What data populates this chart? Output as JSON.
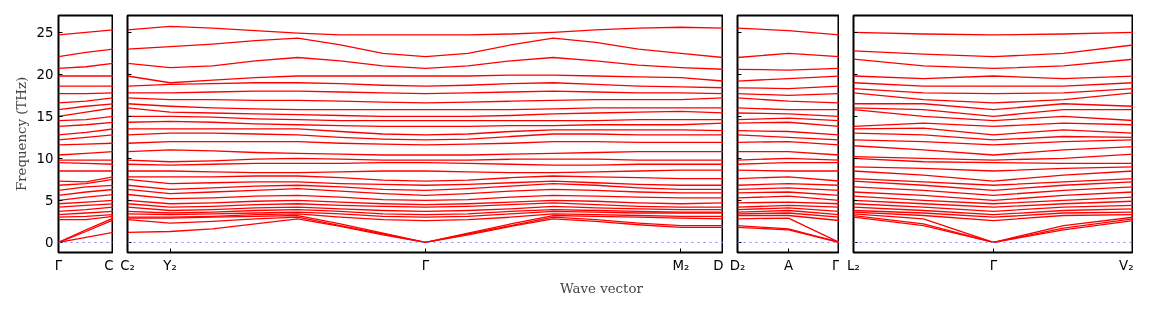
{
  "chart_data": [
    {
      "type": "line",
      "ylabel": "Frequency (THz)",
      "categories": [
        "Γ",
        null,
        "C"
      ],
      "ylim": [
        -1.2,
        27
      ],
      "yticks": [
        0,
        5,
        10,
        15,
        20,
        25
      ],
      "ref_lines": [
        {
          "axis": "y",
          "value": 0,
          "label": null,
          "color": "#8080ff",
          "line_style": "dotted"
        }
      ],
      "grid": false,
      "marker": "none",
      "line_style": "solid",
      "series": [
        {
          "color": "#ff0000",
          "values": [
            0,
            0.6,
            1.2
          ]
        },
        {
          "color": "#ff0000",
          "values": [
            0,
            1.3,
            2.7
          ]
        },
        {
          "color": "#ff0000",
          "values": [
            0,
            1.5,
            2.9
          ]
        },
        {
          "color": "#ff0000",
          "values": [
            2.7,
            2.7,
            3.1
          ]
        },
        {
          "color": "#ff0000",
          "values": [
            3.0,
            3.1,
            3.3
          ]
        },
        {
          "color": "#ff0000",
          "values": [
            3.3,
            3.5,
            3.7
          ]
        },
        {
          "color": "#ff0000",
          "values": [
            3.7,
            3.9,
            4.2
          ]
        },
        {
          "color": "#ff0000",
          "values": [
            4.2,
            4.4,
            4.6
          ]
        },
        {
          "color": "#ff0000",
          "values": [
            4.6,
            4.8,
            5.0
          ]
        },
        {
          "color": "#ff0000",
          "values": [
            5.0,
            5.4,
            5.7
          ]
        },
        {
          "color": "#ff0000",
          "values": [
            5.6,
            6.0,
            6.3
          ]
        },
        {
          "color": "#ff0000",
          "values": [
            6.2,
            6.6,
            6.8
          ]
        },
        {
          "color": "#ff0000",
          "values": [
            6.8,
            7.0,
            7.5
          ]
        },
        {
          "color": "#ff0000",
          "values": [
            7.3,
            7.2,
            7.8
          ]
        },
        {
          "color": "#ff0000",
          "values": [
            8.5,
            8.5,
            8.5
          ]
        },
        {
          "color": "#ff0000",
          "values": [
            9.5,
            9.4,
            9.3
          ]
        },
        {
          "color": "#ff0000",
          "values": [
            9.8,
            9.8,
            9.8
          ]
        },
        {
          "color": "#ff0000",
          "values": [
            10.4,
            10.6,
            10.8
          ]
        },
        {
          "color": "#ff0000",
          "values": [
            11.6,
            11.7,
            11.8
          ]
        },
        {
          "color": "#ff0000",
          "values": [
            12.2,
            12.5,
            12.8
          ]
        },
        {
          "color": "#ff0000",
          "values": [
            12.8,
            13.1,
            13.5
          ]
        },
        {
          "color": "#ff0000",
          "values": [
            13.8,
            14.0,
            14.3
          ]
        },
        {
          "color": "#ff0000",
          "values": [
            14.5,
            14.6,
            15.0
          ]
        },
        {
          "color": "#ff0000",
          "values": [
            15.0,
            15.5,
            16.0
          ]
        },
        {
          "color": "#ff0000",
          "values": [
            15.8,
            16.2,
            16.5
          ]
        },
        {
          "color": "#ff0000",
          "values": [
            16.6,
            16.8,
            17.2
          ]
        },
        {
          "color": "#ff0000",
          "values": [
            17.7,
            17.7,
            17.8
          ]
        },
        {
          "color": "#ff0000",
          "values": [
            18.6,
            18.6,
            18.6
          ]
        },
        {
          "color": "#ff0000",
          "values": [
            19.8,
            19.8,
            19.8
          ]
        },
        {
          "color": "#ff0000",
          "values": [
            20.7,
            20.9,
            21.3
          ]
        },
        {
          "color": "#ff0000",
          "values": [
            22.1,
            22.6,
            23.0
          ]
        },
        {
          "color": "#ff0000",
          "values": [
            24.7,
            25.0,
            25.3
          ]
        }
      ]
    },
    {
      "type": "line",
      "xlabel": "Wave vector",
      "categories": [
        "C₂",
        "Y₂",
        null,
        null,
        null,
        null,
        null,
        "Γ",
        null,
        null,
        null,
        null,
        null,
        "M₂",
        "D"
      ],
      "ylim": [
        -1.2,
        27
      ],
      "yticks": [
        0,
        5,
        10,
        15,
        20,
        25
      ],
      "tick_labels": "x",
      "ref_lines": [
        {
          "axis": "y",
          "value": 0,
          "label": null,
          "color": "#8080ff",
          "line_style": "dotted"
        }
      ],
      "grid": false,
      "marker": "none",
      "line_style": "solid",
      "series": [
        {
          "color": "#ff0000",
          "values": [
            1.2,
            1.3,
            1.6,
            2.2,
            2.8,
            1.9,
            0.9,
            0,
            0.9,
            1.9,
            2.8,
            2.5,
            2.1,
            1.8,
            1.8
          ]
        },
        {
          "color": "#ff0000",
          "values": [
            2.7,
            2.3,
            2.5,
            2.8,
            3.0,
            2.0,
            1.0,
            0,
            1.0,
            2.0,
            3.0,
            2.7,
            2.3,
            2.0,
            2.0
          ]
        },
        {
          "color": "#ff0000",
          "values": [
            2.9,
            2.9,
            3.0,
            3.1,
            3.2,
            2.2,
            1.1,
            0,
            1.1,
            2.2,
            3.2,
            3.1,
            3.0,
            2.9,
            2.8
          ]
        },
        {
          "color": "#ff0000",
          "values": [
            3.0,
            3.0,
            3.1,
            3.3,
            3.4,
            3.0,
            2.7,
            2.6,
            2.7,
            3.0,
            3.4,
            3.3,
            3.2,
            3.1,
            3.1
          ]
        },
        {
          "color": "#ff0000",
          "values": [
            3.4,
            3.3,
            3.4,
            3.5,
            3.6,
            3.4,
            3.1,
            3.0,
            3.1,
            3.4,
            3.7,
            3.6,
            3.5,
            3.5,
            3.5
          ]
        },
        {
          "color": "#ff0000",
          "values": [
            3.7,
            3.5,
            3.6,
            3.8,
            3.9,
            3.7,
            3.4,
            3.3,
            3.4,
            3.7,
            3.9,
            3.8,
            3.7,
            3.6,
            3.6
          ]
        },
        {
          "color": "#ff0000",
          "values": [
            4.2,
            3.8,
            3.9,
            4.1,
            4.2,
            4.0,
            3.8,
            3.7,
            3.8,
            4.0,
            4.3,
            4.1,
            4.0,
            3.9,
            3.9
          ]
        },
        {
          "color": "#ff0000",
          "values": [
            4.6,
            4.2,
            4.3,
            4.5,
            4.6,
            4.4,
            4.3,
            4.2,
            4.3,
            4.5,
            4.7,
            4.5,
            4.3,
            4.2,
            4.2
          ]
        },
        {
          "color": "#ff0000",
          "values": [
            5.0,
            4.6,
            4.7,
            4.9,
            5.0,
            4.8,
            4.6,
            4.5,
            4.6,
            4.8,
            5.0,
            4.9,
            4.7,
            4.6,
            4.7
          ]
        },
        {
          "color": "#ff0000",
          "values": [
            5.7,
            5.2,
            5.3,
            5.5,
            5.6,
            5.4,
            5.1,
            5.0,
            5.1,
            5.4,
            5.6,
            5.5,
            5.4,
            5.3,
            5.3
          ]
        },
        {
          "color": "#ff0000",
          "values": [
            6.3,
            5.8,
            6.0,
            6.2,
            6.4,
            6.1,
            5.8,
            5.6,
            5.8,
            6.1,
            6.3,
            6.2,
            6.0,
            5.9,
            5.9
          ]
        },
        {
          "color": "#ff0000",
          "values": [
            6.8,
            6.3,
            6.5,
            6.7,
            6.8,
            6.6,
            6.3,
            6.2,
            6.4,
            6.7,
            7.0,
            6.8,
            6.5,
            6.3,
            6.3
          ]
        },
        {
          "color": "#ff0000",
          "values": [
            7.5,
            7.0,
            7.1,
            7.2,
            7.2,
            7.0,
            6.9,
            6.8,
            6.9,
            7.1,
            7.3,
            7.1,
            6.9,
            6.8,
            6.8
          ]
        },
        {
          "color": "#ff0000",
          "values": [
            7.8,
            7.8,
            7.8,
            7.9,
            7.9,
            7.7,
            7.4,
            7.3,
            7.4,
            7.7,
            7.9,
            7.8,
            7.7,
            7.6,
            7.6
          ]
        },
        {
          "color": "#ff0000",
          "values": [
            8.5,
            8.5,
            8.4,
            8.3,
            8.3,
            8.4,
            8.5,
            8.5,
            8.4,
            8.3,
            8.3,
            8.4,
            8.5,
            8.6,
            8.6
          ]
        },
        {
          "color": "#ff0000",
          "values": [
            9.3,
            9.2,
            9.3,
            9.4,
            9.4,
            9.4,
            9.5,
            9.5,
            9.4,
            9.3,
            9.2,
            9.2,
            9.3,
            9.3,
            9.3
          ]
        },
        {
          "color": "#ff0000",
          "values": [
            9.8,
            9.6,
            9.7,
            9.9,
            10.0,
            9.9,
            9.8,
            9.8,
            9.8,
            9.9,
            9.9,
            9.9,
            9.8,
            9.8,
            9.8
          ]
        },
        {
          "color": "#ff0000",
          "values": [
            10.8,
            11.0,
            10.9,
            10.7,
            10.6,
            10.5,
            10.4,
            10.4,
            10.4,
            10.5,
            10.6,
            10.7,
            10.8,
            10.8,
            10.8
          ]
        },
        {
          "color": "#ff0000",
          "values": [
            11.8,
            12.0,
            12.0,
            12.0,
            12.0,
            11.8,
            11.7,
            11.6,
            11.7,
            11.8,
            12.0,
            12.0,
            11.9,
            11.9,
            11.9
          ]
        },
        {
          "color": "#ff0000",
          "values": [
            12.8,
            13.0,
            13.0,
            12.9,
            12.8,
            12.5,
            12.3,
            12.2,
            12.3,
            12.6,
            12.9,
            12.9,
            12.8,
            12.8,
            12.8
          ]
        },
        {
          "color": "#ff0000",
          "values": [
            13.5,
            13.5,
            13.5,
            13.5,
            13.5,
            13.2,
            12.9,
            12.8,
            12.9,
            13.2,
            13.4,
            13.4,
            13.4,
            13.4,
            13.3
          ]
        },
        {
          "color": "#ff0000",
          "values": [
            14.3,
            14.4,
            14.3,
            14.1,
            14.0,
            13.9,
            13.8,
            13.8,
            13.8,
            13.9,
            13.9,
            14.0,
            14.0,
            14.0,
            14.2
          ]
        },
        {
          "color": "#ff0000",
          "values": [
            15.0,
            15.0,
            14.9,
            14.7,
            14.6,
            14.5,
            14.5,
            14.5,
            14.5,
            14.5,
            14.5,
            14.5,
            14.6,
            14.6,
            14.6
          ]
        },
        {
          "color": "#ff0000",
          "values": [
            16.0,
            15.5,
            15.4,
            15.3,
            15.2,
            15.1,
            15.0,
            15.0,
            15.0,
            15.1,
            15.3,
            15.4,
            15.5,
            15.6,
            15.4
          ]
        },
        {
          "color": "#ff0000",
          "values": [
            16.5,
            16.2,
            16.0,
            15.9,
            15.8,
            15.8,
            15.8,
            15.8,
            15.8,
            15.8,
            15.9,
            16.0,
            16.0,
            16.0,
            16.0
          ]
        },
        {
          "color": "#ff0000",
          "values": [
            17.2,
            17.0,
            17.0,
            16.9,
            16.9,
            16.8,
            16.7,
            16.6,
            16.7,
            16.8,
            16.9,
            17.0,
            17.0,
            17.0,
            17.2
          ]
        },
        {
          "color": "#ff0000",
          "values": [
            17.8,
            17.8,
            17.9,
            18.0,
            18.0,
            17.9,
            17.8,
            17.7,
            17.8,
            17.9,
            18.0,
            17.9,
            17.8,
            17.8,
            17.7
          ]
        },
        {
          "color": "#ff0000",
          "values": [
            18.6,
            18.8,
            18.9,
            19.0,
            19.0,
            18.9,
            18.7,
            18.6,
            18.7,
            18.9,
            19.0,
            18.8,
            18.6,
            18.5,
            18.4
          ]
        },
        {
          "color": "#ff0000",
          "values": [
            19.8,
            19.0,
            19.3,
            19.6,
            19.8,
            19.8,
            19.8,
            19.8,
            19.8,
            19.9,
            19.9,
            19.8,
            19.7,
            19.6,
            19.2
          ]
        },
        {
          "color": "#ff0000",
          "values": [
            21.3,
            20.8,
            21.0,
            21.6,
            22.0,
            21.6,
            21.0,
            20.7,
            21.0,
            21.6,
            22.0,
            21.6,
            21.1,
            20.8,
            20.6
          ]
        },
        {
          "color": "#ff0000",
          "values": [
            23.0,
            23.3,
            23.6,
            24.0,
            24.3,
            23.5,
            22.5,
            22.1,
            22.5,
            23.5,
            24.3,
            23.8,
            23.0,
            22.5,
            22.0
          ]
        },
        {
          "color": "#ff0000",
          "values": [
            25.3,
            25.7,
            25.5,
            25.2,
            24.9,
            24.7,
            24.7,
            24.7,
            24.7,
            24.8,
            25.0,
            25.3,
            25.5,
            25.6,
            25.5
          ]
        }
      ]
    },
    {
      "type": "line",
      "categories": [
        "D₂",
        "A",
        "Γ"
      ],
      "ylim": [
        -1.2,
        27
      ],
      "yticks": [
        0,
        5,
        10,
        15,
        20,
        25
      ],
      "tick_labels": "x",
      "ref_lines": [
        {
          "axis": "y",
          "value": 0,
          "label": null,
          "color": "#8080ff",
          "line_style": "dotted"
        }
      ],
      "grid": false,
      "marker": "none",
      "line_style": "solid",
      "series": [
        {
          "color": "#ff0000",
          "values": [
            1.8,
            1.5,
            0
          ]
        },
        {
          "color": "#ff0000",
          "values": [
            2.0,
            1.6,
            0
          ]
        },
        {
          "color": "#ff0000",
          "values": [
            2.8,
            2.9,
            0
          ]
        },
        {
          "color": "#ff0000",
          "values": [
            3.2,
            3.2,
            2.6
          ]
        },
        {
          "color": "#ff0000",
          "values": [
            3.4,
            3.5,
            3.0
          ]
        },
        {
          "color": "#ff0000",
          "values": [
            3.6,
            3.8,
            3.3
          ]
        },
        {
          "color": "#ff0000",
          "values": [
            3.9,
            4.1,
            3.7
          ]
        },
        {
          "color": "#ff0000",
          "values": [
            4.2,
            4.4,
            4.2
          ]
        },
        {
          "color": "#ff0000",
          "values": [
            4.7,
            4.8,
            4.6
          ]
        },
        {
          "color": "#ff0000",
          "values": [
            5.3,
            5.5,
            5.0
          ]
        },
        {
          "color": "#ff0000",
          "values": [
            5.9,
            6.0,
            5.6
          ]
        },
        {
          "color": "#ff0000",
          "values": [
            6.3,
            6.5,
            6.2
          ]
        },
        {
          "color": "#ff0000",
          "values": [
            6.8,
            7.0,
            6.8
          ]
        },
        {
          "color": "#ff0000",
          "values": [
            7.6,
            7.8,
            7.3
          ]
        },
        {
          "color": "#ff0000",
          "values": [
            8.6,
            8.5,
            8.5
          ]
        },
        {
          "color": "#ff0000",
          "values": [
            9.3,
            9.5,
            9.5
          ]
        },
        {
          "color": "#ff0000",
          "values": [
            9.8,
            10.0,
            9.8
          ]
        },
        {
          "color": "#ff0000",
          "values": [
            10.8,
            10.8,
            10.4
          ]
        },
        {
          "color": "#ff0000",
          "values": [
            11.9,
            12.0,
            11.6
          ]
        },
        {
          "color": "#ff0000",
          "values": [
            12.8,
            12.5,
            12.2
          ]
        },
        {
          "color": "#ff0000",
          "values": [
            13.3,
            13.2,
            12.8
          ]
        },
        {
          "color": "#ff0000",
          "values": [
            14.2,
            14.3,
            13.8
          ]
        },
        {
          "color": "#ff0000",
          "values": [
            14.6,
            14.8,
            14.5
          ]
        },
        {
          "color": "#ff0000",
          "values": [
            15.4,
            15.3,
            15.0
          ]
        },
        {
          "color": "#ff0000",
          "values": [
            16.0,
            15.8,
            15.8
          ]
        },
        {
          "color": "#ff0000",
          "values": [
            17.2,
            16.8,
            16.6
          ]
        },
        {
          "color": "#ff0000",
          "values": [
            17.7,
            17.5,
            17.7
          ]
        },
        {
          "color": "#ff0000",
          "values": [
            18.4,
            18.3,
            18.6
          ]
        },
        {
          "color": "#ff0000",
          "values": [
            19.2,
            19.5,
            19.8
          ]
        },
        {
          "color": "#ff0000",
          "values": [
            20.6,
            20.5,
            20.7
          ]
        },
        {
          "color": "#ff0000",
          "values": [
            22.0,
            22.5,
            22.1
          ]
        },
        {
          "color": "#ff0000",
          "values": [
            25.5,
            25.2,
            24.7
          ]
        }
      ]
    },
    {
      "type": "line",
      "categories": [
        "L₂",
        null,
        "Γ",
        null,
        "V₂"
      ],
      "ylim": [
        -1.2,
        27
      ],
      "yticks": [
        0,
        5,
        10,
        15,
        20,
        25
      ],
      "tick_labels": "x",
      "ref_lines": [
        {
          "axis": "y",
          "value": 0,
          "label": null,
          "color": "#8080ff",
          "line_style": "dotted"
        }
      ],
      "grid": false,
      "marker": "none",
      "line_style": "solid",
      "series": [
        {
          "color": "#ff0000",
          "values": [
            3.0,
            2.0,
            0,
            1.5,
            2.6
          ]
        },
        {
          "color": "#ff0000",
          "values": [
            3.2,
            2.2,
            0,
            1.7,
            2.8
          ]
        },
        {
          "color": "#ff0000",
          "values": [
            3.4,
            2.8,
            0,
            2.0,
            3.0
          ]
        },
        {
          "color": "#ff0000",
          "values": [
            3.6,
            3.2,
            2.6,
            3.2,
            3.3
          ]
        },
        {
          "color": "#ff0000",
          "values": [
            3.8,
            3.5,
            3.0,
            3.5,
            3.6
          ]
        },
        {
          "color": "#ff0000",
          "values": [
            4.2,
            3.8,
            3.3,
            3.8,
            4.0
          ]
        },
        {
          "color": "#ff0000",
          "values": [
            4.6,
            4.2,
            3.7,
            4.2,
            4.4
          ]
        },
        {
          "color": "#ff0000",
          "values": [
            5.0,
            4.6,
            4.2,
            4.6,
            4.9
          ]
        },
        {
          "color": "#ff0000",
          "values": [
            5.5,
            5.0,
            4.6,
            5.0,
            5.4
          ]
        },
        {
          "color": "#ff0000",
          "values": [
            6.0,
            5.6,
            5.0,
            5.6,
            6.0
          ]
        },
        {
          "color": "#ff0000",
          "values": [
            6.6,
            6.2,
            5.6,
            6.2,
            6.6
          ]
        },
        {
          "color": "#ff0000",
          "values": [
            7.3,
            6.8,
            6.2,
            6.8,
            7.2
          ]
        },
        {
          "color": "#ff0000",
          "values": [
            7.6,
            7.2,
            6.8,
            7.2,
            7.6
          ]
        },
        {
          "color": "#ff0000",
          "values": [
            8.5,
            8.0,
            7.3,
            8.0,
            8.5
          ]
        },
        {
          "color": "#ff0000",
          "values": [
            9.0,
            8.8,
            8.5,
            8.8,
            9.0
          ]
        },
        {
          "color": "#ff0000",
          "values": [
            10.0,
            9.6,
            9.5,
            9.4,
            9.4
          ]
        },
        {
          "color": "#ff0000",
          "values": [
            10.2,
            10.0,
            9.8,
            10.0,
            10.5
          ]
        },
        {
          "color": "#ff0000",
          "values": [
            11.5,
            11.0,
            10.4,
            11.0,
            11.4
          ]
        },
        {
          "color": "#ff0000",
          "values": [
            12.2,
            12.0,
            11.6,
            12.0,
            12.2
          ]
        },
        {
          "color": "#ff0000",
          "values": [
            13.0,
            12.8,
            12.2,
            12.6,
            12.5
          ]
        },
        {
          "color": "#ff0000",
          "values": [
            13.5,
            13.6,
            12.8,
            13.4,
            13.0
          ]
        },
        {
          "color": "#ff0000",
          "values": [
            13.8,
            14.2,
            13.8,
            14.2,
            14.0
          ]
        },
        {
          "color": "#ff0000",
          "values": [
            15.8,
            15.0,
            14.5,
            15.0,
            14.5
          ]
        },
        {
          "color": "#ff0000",
          "values": [
            16.0,
            15.8,
            15.0,
            15.8,
            15.8
          ]
        },
        {
          "color": "#ff0000",
          "values": [
            16.5,
            16.5,
            15.8,
            16.5,
            16.2
          ]
        },
        {
          "color": "#ff0000",
          "values": [
            17.8,
            17.0,
            16.6,
            17.0,
            17.8
          ]
        },
        {
          "color": "#ff0000",
          "values": [
            18.3,
            17.8,
            17.7,
            17.8,
            18.3
          ]
        },
        {
          "color": "#ff0000",
          "values": [
            19.0,
            18.6,
            18.6,
            18.6,
            19.0
          ]
        },
        {
          "color": "#ff0000",
          "values": [
            19.8,
            19.5,
            19.8,
            19.5,
            19.8
          ]
        },
        {
          "color": "#ff0000",
          "values": [
            21.8,
            21.0,
            20.7,
            21.0,
            21.8
          ]
        },
        {
          "color": "#ff0000",
          "values": [
            22.8,
            22.4,
            22.1,
            22.5,
            23.5
          ]
        },
        {
          "color": "#ff0000",
          "values": [
            25.0,
            24.8,
            24.7,
            24.8,
            25.0
          ]
        }
      ]
    }
  ]
}
